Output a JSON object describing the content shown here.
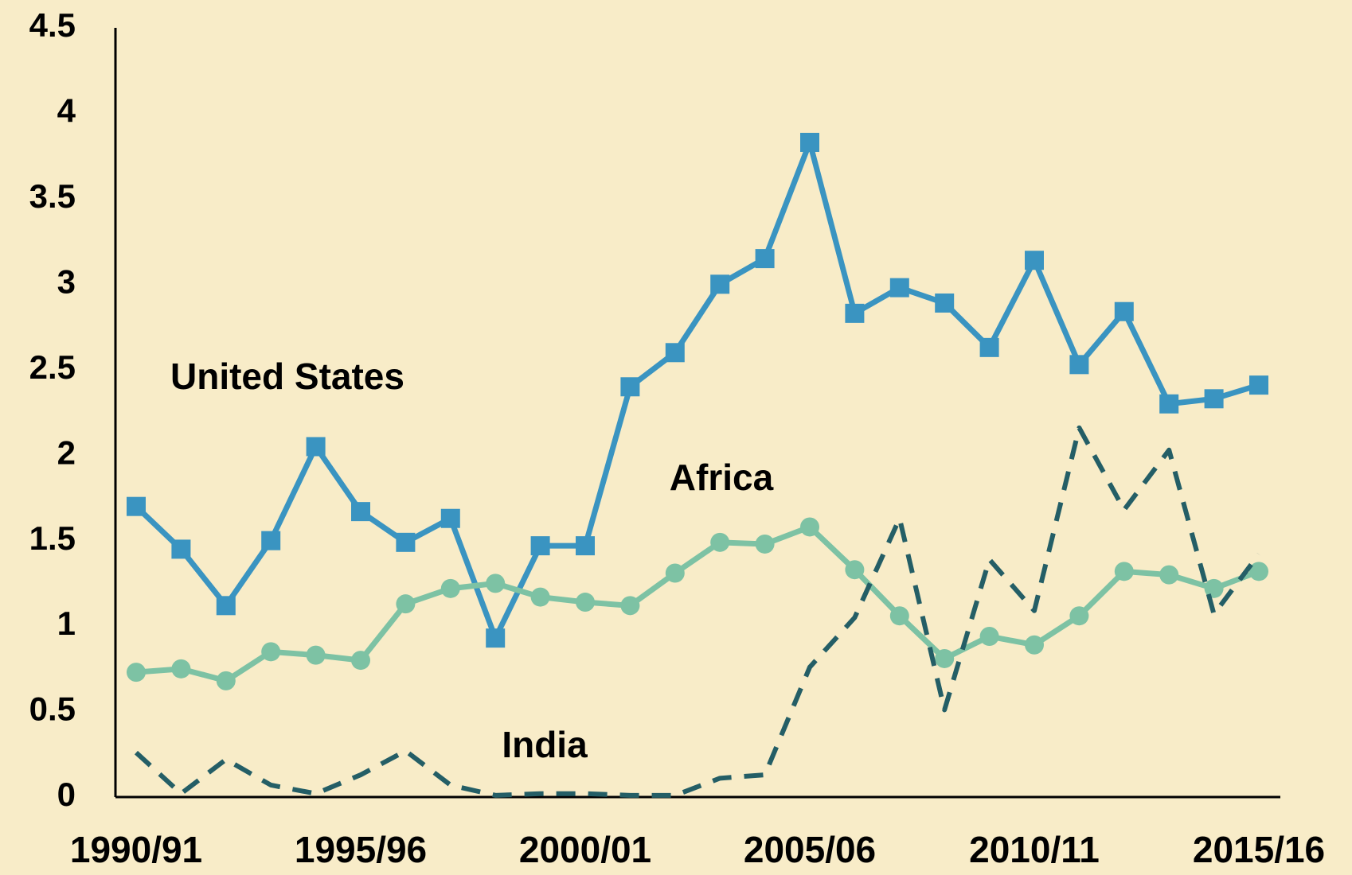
{
  "chart_data": {
    "type": "line",
    "categories": [
      "1990/91",
      null,
      null,
      null,
      null,
      "1995/96",
      null,
      null,
      null,
      null,
      "2000/01",
      null,
      null,
      null,
      null,
      "2005/06",
      null,
      null,
      null,
      null,
      "2010/11",
      null,
      null,
      null,
      null,
      "2015/16"
    ],
    "series": [
      {
        "name": "United States",
        "color": "#3a94c1",
        "marker": "square",
        "dashed": false,
        "values": [
          1.7,
          1.45,
          1.12,
          1.5,
          2.05,
          1.67,
          1.49,
          1.63,
          0.93,
          1.47,
          1.47,
          2.4,
          2.6,
          3.0,
          3.15,
          3.83,
          2.83,
          2.98,
          2.89,
          2.63,
          3.14,
          2.53,
          2.84,
          2.3,
          2.33,
          2.41
        ]
      },
      {
        "name": "Africa",
        "color": "#7dc2a4",
        "marker": "circle",
        "dashed": false,
        "values": [
          0.73,
          0.75,
          0.68,
          0.85,
          0.83,
          0.8,
          1.13,
          1.22,
          1.25,
          1.17,
          1.14,
          1.12,
          1.31,
          1.49,
          1.48,
          1.58,
          1.33,
          1.06,
          0.81,
          0.94,
          0.89,
          1.06,
          1.32,
          1.3,
          1.22,
          1.32
        ]
      },
      {
        "name": "India",
        "color": "#245e66",
        "marker": "none",
        "dashed": true,
        "values": [
          0.26,
          0.02,
          0.22,
          0.07,
          0.02,
          0.13,
          0.27,
          0.07,
          0.01,
          0.02,
          0.02,
          0.01,
          0.01,
          0.11,
          0.13,
          0.76,
          1.05,
          1.63,
          0.51,
          1.39,
          1.09,
          2.16,
          1.68,
          2.03,
          1.07,
          1.42
        ]
      }
    ],
    "ylim": [
      0,
      4.5
    ],
    "yticks": [
      0,
      0.5,
      1,
      1.5,
      2,
      2.5,
      3,
      3.5,
      4,
      4.5
    ],
    "grid": false
  }
}
